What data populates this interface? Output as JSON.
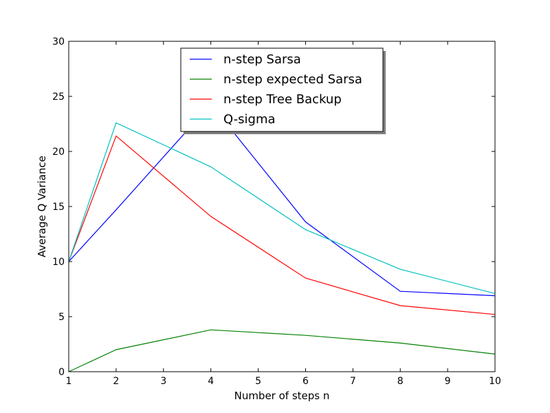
{
  "chart_data": {
    "type": "line",
    "xlabel": "Number of steps n",
    "ylabel": "Average Q Variance",
    "xlim": [
      1,
      10
    ],
    "ylim": [
      0,
      30
    ],
    "xticks": [
      "1",
      "2",
      "3",
      "4",
      "5",
      "6",
      "7",
      "8",
      "9",
      "10"
    ],
    "yticks": [
      "0",
      "5",
      "10",
      "15",
      "20",
      "25",
      "30"
    ],
    "grid": false,
    "legend_position": "top-center",
    "x": [
      1,
      2,
      4,
      6,
      8,
      10
    ],
    "series": [
      {
        "name": "n-step Sarsa",
        "color": "#0000ff",
        "values": [
          10.0,
          14.7,
          24.3,
          13.6,
          7.3,
          6.9
        ]
      },
      {
        "name": "n-step expected Sarsa",
        "color": "#008000",
        "values": [
          0.0,
          2.0,
          3.8,
          3.3,
          2.6,
          1.6
        ]
      },
      {
        "name": "n-step Tree Backup",
        "color": "#ff0000",
        "values": [
          10.0,
          21.4,
          14.1,
          8.5,
          6.0,
          5.2
        ]
      },
      {
        "name": "Q-sigma",
        "color": "#00bfbf",
        "values": [
          10.0,
          22.6,
          18.6,
          12.9,
          9.3,
          7.1
        ]
      }
    ]
  }
}
